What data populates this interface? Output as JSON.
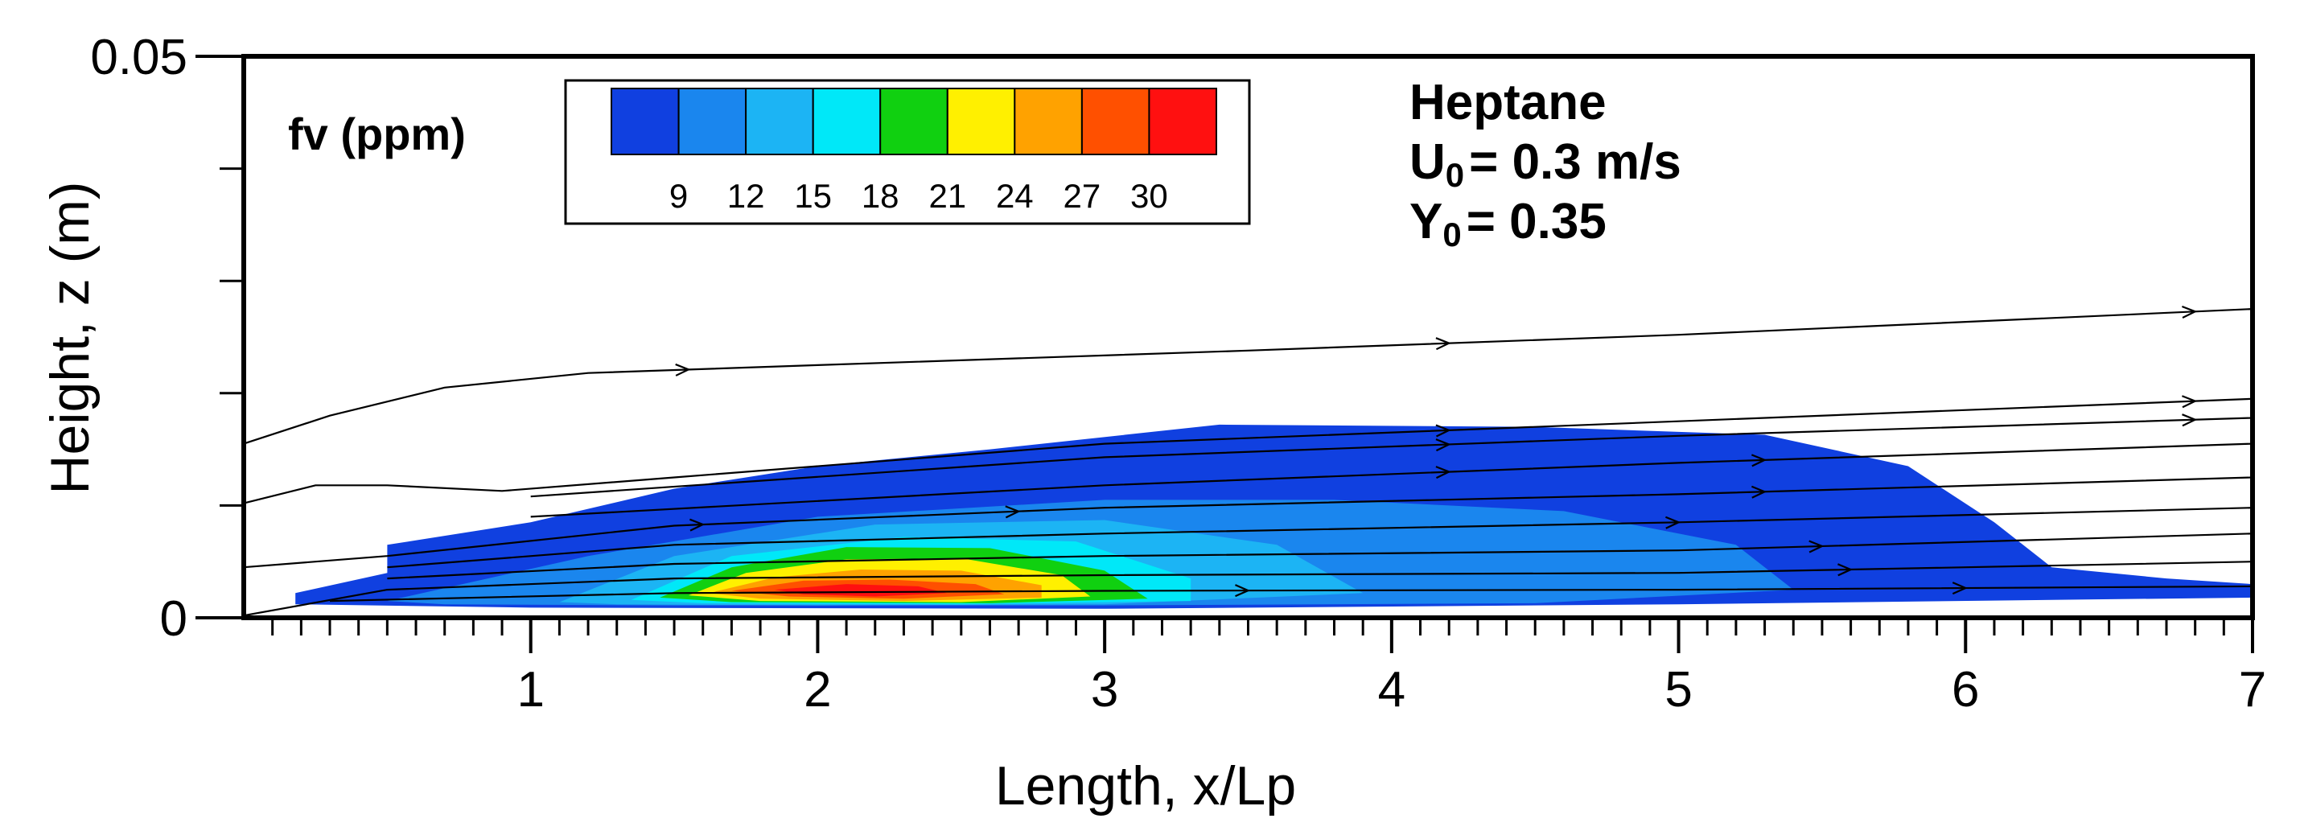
{
  "chart_data": {
    "type": "heatmap",
    "xlabel": "Length, x/Lp",
    "ylabel": "Height, z (m)",
    "xlim": [
      0,
      7
    ],
    "ylim": [
      0,
      0.05
    ],
    "x_major_ticks": [
      1,
      2,
      3,
      4,
      5,
      6,
      7
    ],
    "x_minor_step": 0.1,
    "x_tick_labels": [
      "1",
      "2",
      "3",
      "4",
      "5",
      "6",
      "7"
    ],
    "y_major_ticks": [
      0,
      0.05
    ],
    "y_tick_labels": [
      "0",
      "0.05"
    ],
    "y_minor_ticks": [
      0.01,
      0.02,
      0.03,
      0.04
    ],
    "variable_label": "fv (ppm)",
    "colorbar": {
      "levels": [
        9,
        12,
        15,
        18,
        21,
        24,
        27,
        30
      ],
      "labels": [
        "9",
        "12",
        "15",
        "18",
        "21",
        "24",
        "27",
        "30"
      ],
      "colors": [
        "#1040e0",
        "#1a86ee",
        "#1cb4f4",
        "#00e8f8",
        "#10d010",
        "#fff000",
        "#ffa200",
        "#ff5000",
        "#ff1010"
      ]
    },
    "annotations": {
      "fuel": "Heptane",
      "velocity_sym": "U",
      "velocity_sub": "0",
      "velocity_val": "= 0.3 m/s",
      "massfrac_sym": "Y",
      "massfrac_sub": "0",
      "massfrac_val": "= 0.35"
    },
    "contour_regions": [
      {
        "level_index": 0,
        "outline": [
          [
            0.18,
            0.0022
          ],
          [
            0.5,
            0.004
          ],
          [
            0.5,
            0.0065
          ],
          [
            1.0,
            0.0085
          ],
          [
            1.5,
            0.0115
          ],
          [
            2.0,
            0.0135
          ],
          [
            2.6,
            0.015
          ],
          [
            3.4,
            0.0172
          ],
          [
            4.5,
            0.017
          ],
          [
            5.3,
            0.0163
          ],
          [
            5.8,
            0.0135
          ],
          [
            6.1,
            0.0085
          ],
          [
            6.3,
            0.0045
          ],
          [
            6.7,
            0.0035
          ],
          [
            7.0,
            0.003
          ],
          [
            7.0,
            0.0018
          ],
          [
            5.0,
            0.0012
          ],
          [
            3.0,
            0.0008
          ],
          [
            1.0,
            0.0009
          ],
          [
            0.18,
            0.0012
          ]
        ]
      },
      {
        "level_index": 1,
        "outline": [
          [
            0.5,
            0.0015
          ],
          [
            1.2,
            0.0055
          ],
          [
            2.0,
            0.009
          ],
          [
            3.0,
            0.0105
          ],
          [
            3.8,
            0.0105
          ],
          [
            4.6,
            0.0095
          ],
          [
            5.2,
            0.0065
          ],
          [
            5.4,
            0.0025
          ],
          [
            4.5,
            0.0013
          ],
          [
            3.0,
            0.0011
          ],
          [
            1.5,
            0.0011
          ],
          [
            0.7,
            0.0012
          ]
        ]
      },
      {
        "level_index": 2,
        "outline": [
          [
            1.1,
            0.0014
          ],
          [
            1.5,
            0.0055
          ],
          [
            2.2,
            0.0083
          ],
          [
            3.0,
            0.0087
          ],
          [
            3.6,
            0.0065
          ],
          [
            3.9,
            0.0022
          ],
          [
            3.0,
            0.0012
          ],
          [
            2.0,
            0.0011
          ],
          [
            1.3,
            0.0012
          ]
        ]
      },
      {
        "level_index": 3,
        "outline": [
          [
            1.35,
            0.0016
          ],
          [
            1.7,
            0.0055
          ],
          [
            2.3,
            0.0072
          ],
          [
            2.9,
            0.0068
          ],
          [
            3.3,
            0.0035
          ],
          [
            3.3,
            0.0015
          ],
          [
            2.5,
            0.0012
          ],
          [
            1.6,
            0.0013
          ]
        ]
      },
      {
        "level_index": 4,
        "outline": [
          [
            1.45,
            0.0018
          ],
          [
            1.7,
            0.0045
          ],
          [
            2.1,
            0.0063
          ],
          [
            2.6,
            0.0062
          ],
          [
            3.0,
            0.0042
          ],
          [
            3.15,
            0.0017
          ],
          [
            2.6,
            0.0013
          ],
          [
            1.7,
            0.0014
          ]
        ]
      },
      {
        "level_index": 5,
        "outline": [
          [
            1.55,
            0.002
          ],
          [
            1.75,
            0.004
          ],
          [
            2.1,
            0.0052
          ],
          [
            2.5,
            0.0053
          ],
          [
            2.85,
            0.0038
          ],
          [
            2.95,
            0.0019
          ],
          [
            2.5,
            0.0014
          ],
          [
            1.8,
            0.0015
          ]
        ]
      },
      {
        "level_index": 6,
        "outline": [
          [
            1.62,
            0.0022
          ],
          [
            1.85,
            0.0036
          ],
          [
            2.15,
            0.0043
          ],
          [
            2.5,
            0.0042
          ],
          [
            2.78,
            0.0029
          ],
          [
            2.78,
            0.0018
          ],
          [
            2.3,
            0.0015
          ],
          [
            1.8,
            0.0017
          ]
        ]
      },
      {
        "level_index": 7,
        "outline": [
          [
            1.7,
            0.0024
          ],
          [
            1.95,
            0.0033
          ],
          [
            2.25,
            0.0034
          ],
          [
            2.55,
            0.003
          ],
          [
            2.65,
            0.0021
          ],
          [
            2.3,
            0.0017
          ],
          [
            1.9,
            0.0019
          ]
        ]
      },
      {
        "level_index": 8,
        "outline": [
          [
            1.85,
            0.0025
          ],
          [
            2.1,
            0.003
          ],
          [
            2.35,
            0.0028
          ],
          [
            2.45,
            0.0022
          ],
          [
            2.2,
            0.0019
          ],
          [
            1.95,
            0.0021
          ]
        ]
      }
    ],
    "streamlines": [
      {
        "points": [
          [
            0.0,
            0.0155
          ],
          [
            0.3,
            0.018
          ],
          [
            0.7,
            0.0205
          ],
          [
            1.2,
            0.0218
          ],
          [
            2.0,
            0.0225
          ],
          [
            3.5,
            0.0238
          ],
          [
            5.0,
            0.0252
          ],
          [
            7.0,
            0.0275
          ]
        ],
        "arrows_at": [
          1.55,
          4.2,
          6.8
        ]
      },
      {
        "points": [
          [
            0.0,
            0.0102
          ],
          [
            0.25,
            0.0118
          ],
          [
            0.5,
            0.0118
          ],
          [
            0.9,
            0.0113
          ],
          [
            1.5,
            0.0125
          ],
          [
            3.0,
            0.0155
          ],
          [
            5.0,
            0.0175
          ],
          [
            7.0,
            0.0195
          ]
        ],
        "arrows_at": [
          4.2,
          6.8
        ]
      },
      {
        "points": [
          [
            1.0,
            0.0108
          ],
          [
            3.0,
            0.0143
          ],
          [
            5.0,
            0.0162
          ],
          [
            7.0,
            0.0178
          ]
        ],
        "arrows_at": [
          4.2,
          6.8
        ]
      },
      {
        "points": [
          [
            1.0,
            0.009
          ],
          [
            3.0,
            0.0118
          ],
          [
            5.0,
            0.0138
          ],
          [
            7.0,
            0.0155
          ]
        ],
        "arrows_at": [
          4.2,
          5.3
        ]
      },
      {
        "points": [
          [
            0.0,
            0.0045
          ],
          [
            0.5,
            0.0055
          ],
          [
            1.5,
            0.0082
          ],
          [
            3.0,
            0.0098
          ],
          [
            5.0,
            0.011
          ],
          [
            7.0,
            0.0125
          ]
        ],
        "arrows_at": [
          1.6,
          2.7,
          5.3
        ]
      },
      {
        "points": [
          [
            0.5,
            0.0045
          ],
          [
            1.5,
            0.0065
          ],
          [
            3.0,
            0.0075
          ],
          [
            5.0,
            0.0085
          ],
          [
            7.0,
            0.0098
          ]
        ],
        "arrows_at": [
          5.0
        ]
      },
      {
        "points": [
          [
            0.5,
            0.0035
          ],
          [
            1.5,
            0.0048
          ],
          [
            3.0,
            0.0055
          ],
          [
            5.0,
            0.006
          ],
          [
            7.0,
            0.0075
          ]
        ],
        "arrows_at": [
          5.5
        ]
      },
      {
        "points": [
          [
            0.0,
            0.0002
          ],
          [
            0.5,
            0.0025
          ],
          [
            1.5,
            0.0035
          ],
          [
            3.0,
            0.0038
          ],
          [
            5.0,
            0.004
          ],
          [
            7.0,
            0.005
          ]
        ],
        "arrows_at": [
          5.6
        ]
      },
      {
        "points": [
          [
            0.3,
            0.0015
          ],
          [
            1.5,
            0.0022
          ],
          [
            3.0,
            0.0024
          ],
          [
            5.0,
            0.0025
          ],
          [
            7.0,
            0.0028
          ]
        ],
        "arrows_at": [
          3.5,
          6.0
        ]
      }
    ]
  }
}
